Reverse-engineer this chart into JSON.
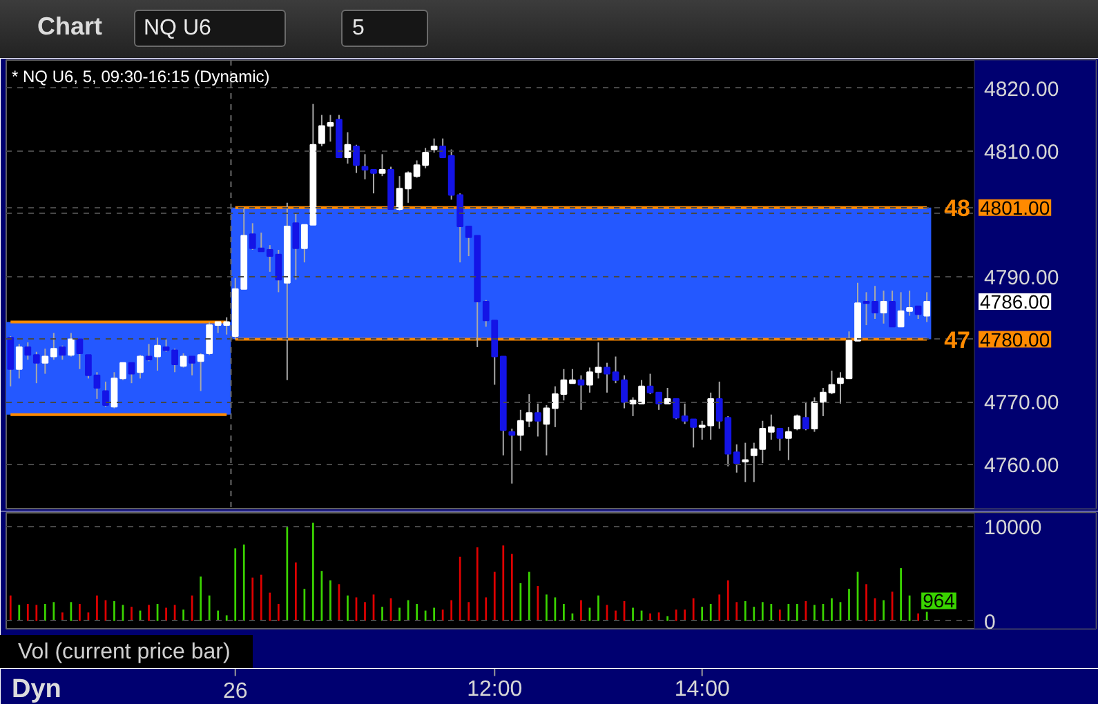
{
  "chart_data": [
    {
      "type": "candlestick",
      "title": "* NQ U6, 5, 09:30-16:15 (Dynamic)",
      "categories": [
        null,
        null,
        null,
        null,
        null,
        null,
        null,
        null,
        null,
        null,
        null,
        null,
        null,
        null,
        null,
        null,
        null,
        null,
        null,
        null,
        null,
        null,
        null,
        null,
        null,
        null,
        null,
        null,
        null,
        null,
        null,
        null,
        null,
        null,
        null,
        null,
        null,
        null,
        null,
        null,
        null,
        null,
        null,
        null,
        null,
        null,
        null,
        null,
        null,
        null,
        null,
        null,
        null,
        null,
        null,
        null,
        null,
        null,
        null,
        null,
        null,
        null,
        null,
        null,
        null,
        null,
        null,
        null,
        null,
        null,
        null,
        null,
        null,
        null,
        null,
        null,
        null,
        null,
        null,
        null,
        null,
        null,
        null,
        null,
        null,
        null,
        null,
        null,
        null,
        null,
        null,
        null,
        null,
        null,
        null,
        null,
        null,
        null,
        null,
        null,
        null,
        null,
        null,
        null,
        null,
        null,
        null,
        null,
        null,
        null,
        null,
        null
      ],
      "ohlc": [
        [
          4780.25,
          4780.5,
          4772.5,
          4775.25
        ],
        [
          4775.25,
          4779.25,
          4773.75,
          4778.75
        ],
        [
          4778.75,
          4779.5,
          4776.75,
          4777.5
        ],
        [
          4777.5,
          4778,
          4773,
          4776.25
        ],
        [
          4776.25,
          4778.5,
          4774.5,
          4777.25
        ],
        [
          4777.25,
          4781,
          4776.75,
          4778.5
        ],
        [
          4778.75,
          4779,
          4776.75,
          4777.5
        ],
        [
          4777.5,
          4781,
          4777.25,
          4780
        ],
        [
          4780,
          4780,
          4775.25,
          4777.75
        ],
        [
          4777.5,
          4777.5,
          4773.75,
          4774.25
        ],
        [
          4774.25,
          4774.75,
          4770.5,
          4772.25
        ],
        [
          4771.75,
          4773.25,
          4769.25,
          4769.5
        ],
        [
          4769.25,
          4774.75,
          4769,
          4773.75
        ],
        [
          4773.75,
          4776.25,
          4773.5,
          4776.25
        ],
        [
          4776.25,
          4776.25,
          4773,
          4774.5
        ],
        [
          4774.75,
          4777.5,
          4773.75,
          4777.25
        ],
        [
          4777.25,
          4779.25,
          4776.5,
          4776.75
        ],
        [
          4777.25,
          4780.25,
          4775,
          4779
        ],
        [
          4778.75,
          4780,
          4778,
          4778.25
        ],
        [
          4778.25,
          4778.5,
          4774.75,
          4776
        ],
        [
          4775.75,
          4777.75,
          4775.5,
          4777.25
        ],
        [
          4777.25,
          4777.25,
          4774.25,
          4776.25
        ],
        [
          4776.5,
          4777.75,
          4771.75,
          4777.5
        ],
        [
          4777.75,
          4782.75,
          4777.5,
          4782.25
        ],
        [
          4782.25,
          4782.75,
          4781,
          4782.75
        ],
        [
          4782.25,
          4783.5,
          4780.75,
          4782.75
        ],
        [
          4780.5,
          4789.75,
          4780,
          4788
        ],
        [
          4788,
          4801,
          4788,
          4796.5
        ],
        [
          4796.75,
          4798.5,
          4794.25,
          4794.5
        ],
        [
          4794.5,
          4797,
          4794,
          4794
        ],
        [
          4794.25,
          4795,
          4790.75,
          4793.25
        ],
        [
          4793.5,
          4794.25,
          4787.5,
          4789.5
        ],
        [
          4789,
          4801.75,
          4773.5,
          4798
        ],
        [
          4798.5,
          4800,
          4789.5,
          4794.5
        ],
        [
          4794.5,
          4798.25,
          4792.25,
          4798.25
        ],
        [
          4798.25,
          4817.5,
          4798.25,
          4811
        ],
        [
          4811.25,
          4815.75,
          4810.75,
          4814
        ],
        [
          4814,
          4815.75,
          4811.5,
          4814.5
        ],
        [
          4815,
          4815.75,
          4809,
          4809
        ],
        [
          4809,
          4813,
          4808,
          4811
        ],
        [
          4810.75,
          4811,
          4806.5,
          4807.75
        ],
        [
          4807.5,
          4809.5,
          4805.5,
          4807
        ],
        [
          4807,
          4807,
          4803.25,
          4806.5
        ],
        [
          4806.5,
          4809.5,
          4806,
          4807
        ],
        [
          4807,
          4807.5,
          4800.75,
          4800.75
        ],
        [
          4800.75,
          4806,
          4800.5,
          4804
        ],
        [
          4804,
          4806.75,
          4801.75,
          4806.5
        ],
        [
          4806,
          4808.5,
          4805.75,
          4807.75
        ],
        [
          4807.75,
          4810.5,
          4807.25,
          4809.75
        ],
        [
          4810.25,
          4812,
          4809.75,
          4810.75
        ],
        [
          4810.75,
          4812,
          4809,
          4809
        ],
        [
          4809.25,
          4810.25,
          4802.25,
          4803
        ],
        [
          4803,
          4803.25,
          4792.25,
          4798
        ],
        [
          4798,
          4798,
          4793.25,
          4796.25
        ],
        [
          4796.5,
          4796.5,
          4778.75,
          4786
        ],
        [
          4786,
          4786.25,
          4782,
          4783
        ],
        [
          4783,
          4783,
          4772.75,
          4777.25
        ],
        [
          4777.25,
          4777.25,
          4761.5,
          4765.5
        ],
        [
          4765.25,
          4765.75,
          4757,
          4764.75
        ],
        [
          4764.75,
          4768.75,
          4762.25,
          4767
        ],
        [
          4767,
          4771.25,
          4766,
          4768.25
        ],
        [
          4768.25,
          4769.75,
          4764.5,
          4767
        ],
        [
          4766.5,
          4769.5,
          4761.5,
          4769
        ],
        [
          4769,
          4772.5,
          4766,
          4771.25
        ],
        [
          4771.25,
          4775.25,
          4770.25,
          4773.5
        ],
        [
          4773,
          4775.25,
          4773,
          4773.5
        ],
        [
          4773.5,
          4774.25,
          4768.75,
          4772.75
        ],
        [
          4772.75,
          4775.5,
          4771.5,
          4774.75
        ],
        [
          4774.75,
          4779.5,
          4773.75,
          4775.5
        ],
        [
          4775.5,
          4776.25,
          4771.5,
          4774.5
        ],
        [
          4774.75,
          4777.25,
          4773,
          4773.5
        ],
        [
          4773.5,
          4774.25,
          4769,
          4770
        ],
        [
          4769.75,
          4770.75,
          4767.75,
          4770.25
        ],
        [
          4769.75,
          4773.5,
          4769.75,
          4772.5
        ],
        [
          4772.5,
          4774.5,
          4771.25,
          4771.5
        ],
        [
          4771.5,
          4771.5,
          4768.75,
          4769.75
        ],
        [
          4769.75,
          4772.25,
          4769.75,
          4770.5
        ],
        [
          4770.5,
          4770.5,
          4767.25,
          4767.5
        ],
        [
          4767.75,
          4769.75,
          4766.5,
          4767
        ],
        [
          4767.25,
          4767.25,
          4762.75,
          4766
        ],
        [
          4766,
          4767,
          4764,
          4766.25
        ],
        [
          4766.25,
          4771.5,
          4764,
          4770.5
        ],
        [
          4770.5,
          4773.25,
          4765.75,
          4767
        ],
        [
          4767.5,
          4767.75,
          4759.75,
          4761.75
        ],
        [
          4762,
          4763.25,
          4758.75,
          4760.25
        ],
        [
          4760.5,
          4763.5,
          4757.25,
          4760.75
        ],
        [
          4761.5,
          4763.5,
          4757.25,
          4762.5
        ],
        [
          4762.5,
          4767,
          4760.25,
          4765.75
        ],
        [
          4765.25,
          4768,
          4764,
          4766
        ],
        [
          4765.75,
          4765.75,
          4762.25,
          4764.25
        ],
        [
          4764.25,
          4766,
          4760.75,
          4765.25
        ],
        [
          4765.75,
          4768,
          4765.5,
          4767.75
        ],
        [
          4767.5,
          4770,
          4765.5,
          4765.75
        ],
        [
          4765.75,
          4770.75,
          4765.25,
          4770
        ],
        [
          4770,
          4772.25,
          4767.75,
          4771.5
        ],
        [
          4771.5,
          4775,
          4771.25,
          4772.75
        ],
        [
          4773,
          4774.75,
          4769.75,
          4773.75
        ],
        [
          4773.75,
          4781.25,
          4773.75,
          4779.75
        ],
        [
          4779.75,
          4789,
          4779.75,
          4785.75
        ],
        [
          4786,
          4787.5,
          4782.25,
          4785.75
        ],
        [
          4786,
          4788.5,
          4783.25,
          4784.25
        ],
        [
          4784.25,
          4787.75,
          4782.5,
          4786
        ],
        [
          4786,
          4787.75,
          4782,
          4782
        ],
        [
          4782,
          4787.5,
          4782,
          4784.5
        ],
        [
          4784.5,
          4787.75,
          4783.75,
          4785
        ],
        [
          4785.25,
          4785.25,
          4783.25,
          4784
        ],
        [
          4783.75,
          4787.5,
          4782.75,
          4786
        ],
        null,
        null,
        null,
        null,
        null
      ],
      "colors": [
        "#1414e6",
        "#ffffff",
        "#1414e6",
        "#1414e6",
        "#ffffff",
        "#ffffff",
        "#1414e6",
        "#ffffff",
        "#1414e6",
        "#1414e6",
        "#1414e6",
        "#1414e6",
        "#ffffff",
        "#ffffff",
        "#1414e6",
        "#ffffff",
        "#1414e6",
        "#ffffff",
        "#1414e6",
        "#1414e6",
        "#ffffff",
        "#1414e6",
        "#ffffff",
        "#ffffff",
        "#ffffff",
        "#ffffff",
        "#ffffff",
        "#ffffff",
        "#1414e6",
        "#1414e6",
        "#1414e6",
        "#1414e6",
        "#ffffff",
        "#1414e6",
        "#ffffff",
        "#ffffff",
        "#ffffff",
        "#ffffff",
        "#1414e6",
        "#ffffff",
        "#1414e6",
        "#1414e6",
        "#1414e6",
        "#ffffff",
        "#1414e6",
        "#ffffff",
        "#ffffff",
        "#ffffff",
        "#ffffff",
        "#ffffff",
        "#1414e6",
        "#1414e6",
        "#1414e6",
        "#1414e6",
        "#1414e6",
        "#1414e6",
        "#1414e6",
        "#1414e6",
        "#1414e6",
        "#ffffff",
        "#ffffff",
        "#1414e6",
        "#ffffff",
        "#ffffff",
        "#ffffff",
        "#ffffff",
        "#1414e6",
        "#ffffff",
        "#ffffff",
        "#1414e6",
        "#1414e6",
        "#1414e6",
        "#ffffff",
        "#ffffff",
        "#1414e6",
        "#1414e6",
        "#ffffff",
        "#1414e6",
        "#1414e6",
        "#1414e6",
        "#ffffff",
        "#ffffff",
        "#1414e6",
        "#1414e6",
        "#1414e6",
        "#ffffff",
        "#ffffff",
        "#ffffff",
        "#ffffff",
        "#1414e6",
        "#ffffff",
        "#ffffff",
        "#1414e6",
        "#ffffff",
        "#ffffff",
        "#ffffff",
        "#ffffff",
        "#ffffff",
        "#ffffff",
        "#1414e6",
        "#1414e6",
        "#ffffff",
        "#1414e6",
        "#ffffff",
        "#ffffff",
        "#1414e6",
        "#ffffff",
        null,
        null,
        null,
        null,
        null
      ],
      "value_labels": [
        null,
        null,
        null,
        null,
        null,
        null,
        null,
        null,
        null,
        null,
        null,
        null,
        null,
        null,
        null,
        null,
        null,
        null,
        null,
        null,
        null,
        null,
        null,
        null,
        null,
        null,
        null,
        null,
        null,
        null,
        null,
        null,
        null,
        null,
        null,
        null,
        null,
        null,
        null,
        null,
        null,
        null,
        null,
        null,
        null,
        null,
        null,
        null,
        null,
        null,
        null,
        null,
        null,
        null,
        null,
        null,
        null,
        null,
        null,
        null,
        null,
        null,
        null,
        null,
        null,
        null,
        null,
        null,
        null,
        null,
        null,
        null,
        null,
        null,
        null,
        null,
        null,
        null,
        null,
        null,
        null,
        null,
        null,
        null,
        null,
        null,
        null,
        null,
        null,
        null,
        null,
        null,
        null,
        null,
        null,
        null,
        null,
        null,
        null,
        null,
        null,
        null,
        null,
        null,
        null,
        null,
        "4786.00",
        null,
        null,
        null,
        null,
        null
      ],
      "color": "#a8a8a8",
      "ylim": [
        4753,
        4824.5
      ],
      "yticks": [
        {
          "value": 4760,
          "label": "4760.00"
        },
        {
          "value": 4770,
          "label": "4770.00"
        },
        {
          "value": 4780,
          "label": "4780.00"
        },
        {
          "value": 4790,
          "label": "4790.00"
        },
        {
          "value": 4800,
          "label": null
        },
        {
          "value": 4801,
          "label": "4801.00"
        },
        {
          "value": 4810,
          "label": "4810.00"
        },
        {
          "value": 4820,
          "label": "4820.00"
        }
      ],
      "grid": "y",
      "tick_labels": "y",
      "legend": "right",
      "ref_lines": [
        {
          "axis": "x",
          "value": "26",
          "color": "#6a6a6a",
          "line_style": "dashed"
        }
      ],
      "bands": [
        {
          "axis": "y",
          "from": 4768,
          "to": 4782.75,
          "color": "#2458ff"
        },
        {
          "axis": "y",
          "from": 4780,
          "to": 4801,
          "color": "#2458ff"
        }
      ],
      "annotations": [
        "Chart",
        "NQ U6",
        "5"
      ],
      "series": [
        {
          "type": "line",
          "color": "#ff8a00",
          "values": [
            4782.75,
            4782.75,
            4782.75,
            4782.75,
            4782.75,
            4782.75,
            4782.75,
            4782.75,
            4782.75,
            4782.75,
            4782.75,
            4782.75,
            4782.75,
            4782.75,
            4782.75,
            4782.75,
            4782.75,
            4782.75,
            4782.75,
            4782.75,
            4782.75,
            4782.75,
            4782.75,
            4782.75,
            4782.75,
            4782.75,
            null,
            null,
            null,
            null,
            null,
            null,
            null,
            null,
            null,
            null,
            null,
            null,
            null,
            null,
            null,
            null,
            null,
            null,
            null,
            null,
            null,
            null,
            null,
            null,
            null,
            null,
            null,
            null,
            null,
            null,
            null,
            null,
            null,
            null,
            null,
            null,
            null,
            null,
            null,
            null,
            null,
            null,
            null,
            null,
            null,
            null,
            null,
            null,
            null,
            null,
            null,
            null,
            null,
            null,
            null,
            null,
            null,
            null,
            null,
            null,
            null,
            null,
            null,
            null,
            null,
            null,
            null,
            null,
            null,
            null,
            null,
            null,
            null,
            null,
            null,
            null,
            null,
            null,
            null,
            null,
            null,
            null,
            null,
            null,
            null,
            null
          ]
        },
        {
          "type": "line",
          "color": "#ff8a00",
          "values": [
            4768,
            4768,
            4768,
            4768,
            4768,
            4768,
            4768,
            4768,
            4768,
            4768,
            4768,
            4768,
            4768,
            4768,
            4768,
            4768,
            4768,
            4768,
            4768,
            4768,
            4768,
            4768,
            4768,
            4768,
            4768,
            4768,
            null,
            null,
            null,
            null,
            null,
            null,
            null,
            null,
            null,
            null,
            null,
            null,
            null,
            null,
            null,
            null,
            null,
            null,
            null,
            null,
            null,
            null,
            null,
            null,
            null,
            null,
            null,
            null,
            null,
            null,
            null,
            null,
            null,
            null,
            null,
            null,
            null,
            null,
            null,
            null,
            null,
            null,
            null,
            null,
            null,
            null,
            null,
            null,
            null,
            null,
            null,
            null,
            null,
            null,
            null,
            null,
            null,
            null,
            null,
            null,
            null,
            null,
            null,
            null,
            null,
            null,
            null,
            null,
            null,
            null,
            null,
            null,
            null,
            null,
            null,
            null,
            null,
            null,
            null,
            null,
            null,
            null,
            null,
            null,
            null,
            null
          ]
        },
        {
          "type": "line",
          "name": "48",
          "color": "#ff8a00",
          "values": [
            null,
            null,
            null,
            null,
            null,
            null,
            null,
            null,
            null,
            null,
            null,
            null,
            null,
            null,
            null,
            null,
            null,
            null,
            null,
            null,
            null,
            null,
            null,
            null,
            null,
            null,
            4801,
            4801,
            4801,
            4801,
            4801,
            4801,
            4801,
            4801,
            4801,
            4801,
            4801,
            4801,
            4801,
            4801,
            4801,
            4801,
            4801,
            4801,
            4801,
            4801,
            4801,
            4801,
            4801,
            4801,
            4801,
            4801,
            4801,
            4801,
            4801,
            4801,
            4801,
            4801,
            4801,
            4801,
            4801,
            4801,
            4801,
            4801,
            4801,
            4801,
            4801,
            4801,
            4801,
            4801,
            4801,
            4801,
            4801,
            4801,
            4801,
            4801,
            4801,
            4801,
            4801,
            4801,
            4801,
            4801,
            4801,
            4801,
            4801,
            4801,
            4801,
            4801,
            4801,
            4801,
            4801,
            4801,
            4801,
            4801,
            4801,
            4801,
            4801,
            4801,
            4801,
            4801,
            4801,
            4801,
            4801,
            4801,
            4801,
            4801,
            4801,
            null,
            null,
            null,
            null,
            null
          ]
        },
        {
          "type": "line",
          "name": "47",
          "color": "#ff8a00",
          "values": [
            null,
            null,
            null,
            null,
            null,
            null,
            null,
            null,
            null,
            null,
            null,
            null,
            null,
            null,
            null,
            null,
            null,
            null,
            null,
            null,
            null,
            null,
            null,
            null,
            null,
            null,
            4780,
            4780,
            4780,
            4780,
            4780,
            4780,
            4780,
            4780,
            4780,
            4780,
            4780,
            4780,
            4780,
            4780,
            4780,
            4780,
            4780,
            4780,
            4780,
            4780,
            4780,
            4780,
            4780,
            4780,
            4780,
            4780,
            4780,
            4780,
            4780,
            4780,
            4780,
            4780,
            4780,
            4780,
            4780,
            4780,
            4780,
            4780,
            4780,
            4780,
            4780,
            4780,
            4780,
            4780,
            4780,
            4780,
            4780,
            4780,
            4780,
            4780,
            4780,
            4780,
            4780,
            4780,
            4780,
            4780,
            4780,
            4780,
            4780,
            4780,
            4780,
            4780,
            4780,
            4780,
            4780,
            4780,
            4780,
            4780,
            4780,
            4780,
            4780,
            4780,
            4780,
            4780,
            4780,
            4780,
            4780,
            4780,
            4780,
            4780,
            4780,
            null,
            null,
            null,
            null,
            null
          ]
        }
      ]
    },
    {
      "type": "bar",
      "categories": [
        null,
        null,
        null,
        null,
        null,
        null,
        null,
        null,
        null,
        null,
        null,
        null,
        null,
        null,
        null,
        null,
        null,
        null,
        null,
        null,
        null,
        null,
        null,
        null,
        null,
        null,
        "26",
        null,
        null,
        null,
        null,
        null,
        null,
        null,
        null,
        null,
        null,
        null,
        null,
        null,
        null,
        null,
        null,
        null,
        null,
        null,
        null,
        null,
        null,
        null,
        null,
        null,
        null,
        null,
        null,
        null,
        "12:00",
        null,
        null,
        null,
        null,
        null,
        null,
        null,
        null,
        null,
        null,
        null,
        null,
        null,
        null,
        null,
        null,
        null,
        null,
        null,
        null,
        null,
        null,
        null,
        "14:00",
        null,
        null,
        null,
        null,
        null,
        null,
        null,
        null,
        null,
        null,
        null,
        null,
        null,
        null,
        null,
        null,
        null,
        null,
        null,
        null,
        null,
        null,
        null,
        null,
        null,
        null,
        null,
        null,
        null,
        null,
        null
      ],
      "values": [
        2700,
        1700,
        1800,
        1700,
        1800,
        2000,
        900,
        2000,
        1800,
        900,
        2700,
        2200,
        2100,
        1700,
        1500,
        1100,
        1700,
        1800,
        1400,
        1700,
        1200,
        2700,
        4700,
        2700,
        1100,
        600,
        7700,
        8100,
        4600,
        4900,
        3000,
        1800,
        10000,
        6200,
        3400,
        10400,
        5300,
        4300,
        3900,
        2700,
        2500,
        2000,
        2800,
        1500,
        2400,
        1400,
        2200,
        1800,
        1100,
        1400,
        1200,
        2200,
        6800,
        2000,
        7800,
        2500,
        5200,
        8000,
        7100,
        4000,
        5200,
        3700,
        2800,
        2500,
        1800,
        800,
        2200,
        1400,
        2700,
        1700,
        1100,
        2100,
        1400,
        1100,
        800,
        900,
        500,
        1200,
        1200,
        2400,
        1500,
        1800,
        2800,
        4300,
        2000,
        2100,
        1500,
        2000,
        1800,
        1200,
        1800,
        1800,
        2100,
        1700,
        1800,
        2400,
        2000,
        3400,
        5200,
        3900,
        2400,
        2200,
        3100,
        5600,
        2700,
        800,
        964,
        null,
        null,
        null,
        null,
        null
      ],
      "colors": [
        "#e00000",
        "#3ad400",
        "#e00000",
        "#e00000",
        "#3ad400",
        "#3ad400",
        "#e00000",
        "#3ad400",
        "#e00000",
        "#e00000",
        "#e00000",
        "#e00000",
        "#3ad400",
        "#3ad400",
        "#e00000",
        "#3ad400",
        "#e00000",
        "#3ad400",
        "#e00000",
        "#e00000",
        "#3ad400",
        "#e00000",
        "#3ad400",
        "#3ad400",
        "#3ad400",
        "#3ad400",
        "#3ad400",
        "#3ad400",
        "#e00000",
        "#e00000",
        "#e00000",
        "#e00000",
        "#3ad400",
        "#e00000",
        "#3ad400",
        "#3ad400",
        "#3ad400",
        "#3ad400",
        "#e00000",
        "#3ad400",
        "#e00000",
        "#e00000",
        "#e00000",
        "#3ad400",
        "#e00000",
        "#3ad400",
        "#3ad400",
        "#3ad400",
        "#3ad400",
        "#3ad400",
        "#e00000",
        "#e00000",
        "#e00000",
        "#e00000",
        "#e00000",
        "#e00000",
        "#e00000",
        "#e00000",
        "#e00000",
        "#3ad400",
        "#3ad400",
        "#e00000",
        "#3ad400",
        "#3ad400",
        "#3ad400",
        "#3ad400",
        "#e00000",
        "#3ad400",
        "#3ad400",
        "#e00000",
        "#e00000",
        "#e00000",
        "#3ad400",
        "#3ad400",
        "#e00000",
        "#e00000",
        "#3ad400",
        "#e00000",
        "#e00000",
        "#e00000",
        "#3ad400",
        "#3ad400",
        "#e00000",
        "#e00000",
        "#e00000",
        "#3ad400",
        "#3ad400",
        "#3ad400",
        "#3ad400",
        "#e00000",
        "#3ad400",
        "#3ad400",
        "#e00000",
        "#3ad400",
        "#3ad400",
        "#3ad400",
        "#3ad400",
        "#3ad400",
        "#3ad400",
        "#e00000",
        "#e00000",
        "#3ad400",
        "#e00000",
        "#3ad400",
        "#3ad400",
        "#e00000",
        "#3ad400",
        null,
        null,
        null,
        null,
        null
      ],
      "value_labels": [
        null,
        null,
        null,
        null,
        null,
        null,
        null,
        null,
        null,
        null,
        null,
        null,
        null,
        null,
        null,
        null,
        null,
        null,
        null,
        null,
        null,
        null,
        null,
        null,
        null,
        null,
        null,
        null,
        null,
        null,
        null,
        null,
        null,
        null,
        null,
        null,
        null,
        null,
        null,
        null,
        null,
        null,
        null,
        null,
        null,
        null,
        null,
        null,
        null,
        null,
        null,
        null,
        null,
        null,
        null,
        null,
        null,
        null,
        null,
        null,
        null,
        null,
        null,
        null,
        null,
        null,
        null,
        null,
        null,
        null,
        null,
        null,
        null,
        null,
        null,
        null,
        null,
        null,
        null,
        null,
        null,
        null,
        null,
        null,
        null,
        null,
        null,
        null,
        null,
        null,
        null,
        null,
        null,
        null,
        null,
        null,
        null,
        null,
        null,
        null,
        null,
        null,
        null,
        null,
        null,
        null,
        "964",
        null,
        null,
        null,
        null,
        null
      ],
      "ylim": [
        -830,
        11460
      ],
      "yticks": [
        0,
        10000
      ],
      "grid": "y",
      "annotations": [
        "Vol (current price bar)",
        "Dyn"
      ]
    }
  ]
}
